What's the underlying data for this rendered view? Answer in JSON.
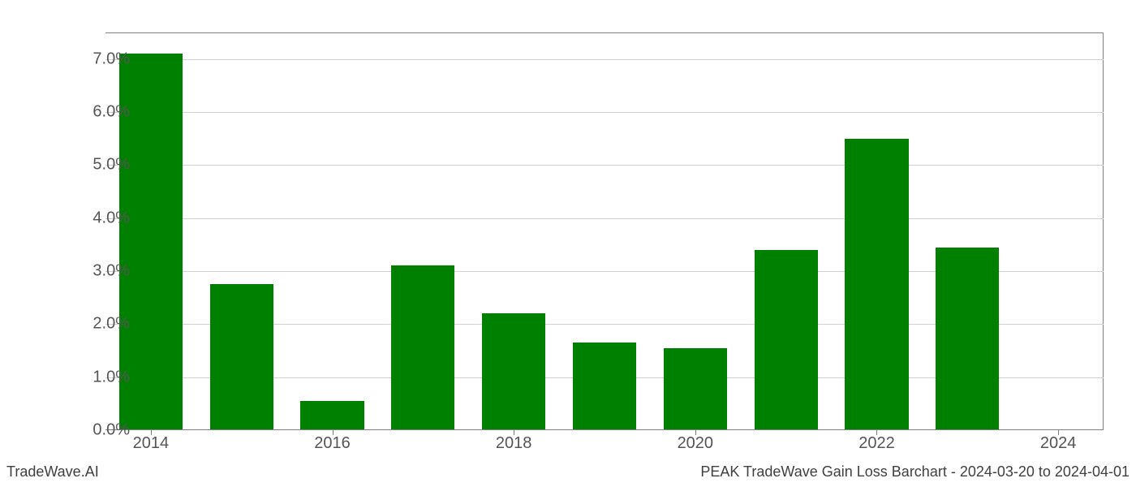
{
  "chart": {
    "type": "bar",
    "years": [
      2014,
      2015,
      2016,
      2017,
      2018,
      2019,
      2020,
      2021,
      2022,
      2023,
      2024
    ],
    "values": [
      7.1,
      2.75,
      0.55,
      3.1,
      2.2,
      1.65,
      1.55,
      3.4,
      5.5,
      3.45,
      0.0
    ],
    "bar_color": "#008000",
    "background_color": "#ffffff",
    "grid_color": "#d0d0d0",
    "axis_color": "#808080",
    "tick_label_color": "#555555",
    "tick_fontsize": 20,
    "y_ticks": [
      0,
      1,
      2,
      3,
      4,
      5,
      6,
      7
    ],
    "y_tick_labels": [
      "0.0%",
      "1.0%",
      "2.0%",
      "3.0%",
      "4.0%",
      "5.0%",
      "6.0%",
      "7.0%"
    ],
    "x_tick_years": [
      2014,
      2016,
      2018,
      2020,
      2022,
      2024
    ],
    "x_tick_labels": [
      "2014",
      "2016",
      "2018",
      "2020",
      "2022",
      "2024"
    ],
    "ylim": [
      0,
      7.5
    ],
    "bar_width": 0.7
  },
  "footer": {
    "left": "TradeWave.AI",
    "right": "PEAK TradeWave Gain Loss Barchart - 2024-03-20 to 2024-04-01",
    "fontsize": 18,
    "color": "#404040"
  }
}
